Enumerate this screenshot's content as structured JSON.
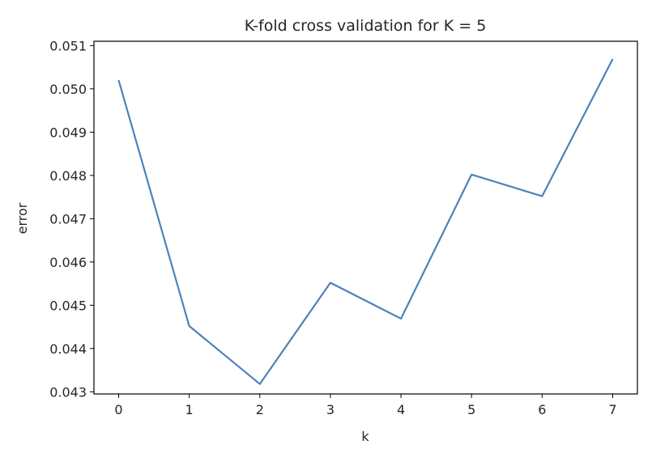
{
  "chart_data": {
    "type": "line",
    "title": "K-fold cross validation for K = 5",
    "xlabel": "k",
    "ylabel": "error",
    "x": [
      0,
      1,
      2,
      3,
      4,
      5,
      6,
      7
    ],
    "series": [
      {
        "values": [
          0.0502,
          0.04452,
          0.04318,
          0.04552,
          0.04469,
          0.04802,
          0.04752,
          0.05069
        ],
        "color": "#4c82bb"
      }
    ],
    "xlim": [
      -0.35,
      7.35
    ],
    "ylim": [
      0.04295,
      0.0511
    ],
    "x_ticks": [
      "0",
      "1",
      "2",
      "3",
      "4",
      "5",
      "6",
      "7"
    ],
    "y_ticks": [
      "0.043",
      "0.044",
      "0.045",
      "0.046",
      "0.047",
      "0.048",
      "0.049",
      "0.050",
      "0.051"
    ],
    "grid": false,
    "legend": "none"
  }
}
